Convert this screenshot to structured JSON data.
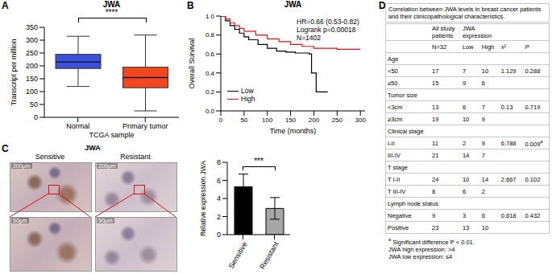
{
  "chart_data": [
    {
      "panel": "A",
      "type": "box",
      "title": "JWA",
      "x_label": "TCGA sample",
      "y_label": "Transcript per million",
      "categories": [
        "Normal",
        "Primary tumor"
      ],
      "min": [
        120,
        25
      ],
      "q1": [
        190,
        115
      ],
      "median": [
        215,
        155
      ],
      "q3": [
        245,
        195
      ],
      "max": [
        315,
        320
      ],
      "colors": [
        "#3d4fd8",
        "#f2461f"
      ],
      "ylim": [
        0,
        350
      ],
      "yticks": [
        0,
        50,
        100,
        150,
        200,
        250,
        300,
        350
      ],
      "annotation": "****"
    },
    {
      "panel": "B",
      "type": "line",
      "title": "JWA",
      "annotations": [
        "HR=0.66 (0.53-0.82)",
        "Logrank p=0.00018",
        "N=1402"
      ],
      "x_label": "Time (months)",
      "y_label": "Overall Survival",
      "line_style": "step",
      "legend": "lower left",
      "xlim": [
        0,
        310
      ],
      "xticks": [
        0,
        50,
        100,
        150,
        200,
        250,
        300
      ],
      "ylim": [
        0,
        1
      ],
      "yticks": [
        {
          "value": 0,
          "label": "0.0"
        },
        {
          "value": 0.2,
          "label": "0.2"
        },
        {
          "value": 0.4,
          "label": "0.4"
        },
        {
          "value": 0.6,
          "label": "0.6"
        },
        {
          "value": 0.8,
          "label": "0.8"
        },
        {
          "value": 1,
          "label": "1.0"
        }
      ],
      "series": [
        {
          "name": "Low",
          "color": "#000000",
          "x": [
            0,
            10,
            20,
            30,
            40,
            50,
            60,
            80,
            100,
            120,
            140,
            160,
            190,
            195,
            200,
            205,
            230
          ],
          "values": [
            1,
            0.95,
            0.9,
            0.86,
            0.82,
            0.78,
            0.75,
            0.7,
            0.66,
            0.63,
            0.62,
            0.61,
            0.6,
            0.4,
            0.4,
            0.2,
            0.2
          ]
        },
        {
          "name": "High",
          "color": "#e8141b",
          "x": [
            0,
            10,
            20,
            30,
            40,
            50,
            75,
            100,
            125,
            150,
            175,
            200,
            250,
            300
          ],
          "values": [
            1,
            0.97,
            0.93,
            0.9,
            0.87,
            0.84,
            0.8,
            0.76,
            0.73,
            0.7,
            0.68,
            0.66,
            0.65,
            0.65
          ]
        }
      ]
    },
    {
      "panel": "C",
      "type": "bar",
      "y_label": "Relative expression JWA",
      "categories": [
        "Sensitive",
        "Resistant"
      ],
      "values": [
        5.3,
        2.9
      ],
      "errors": [
        1.4,
        1.2
      ],
      "colors": [
        "#000000",
        "#a6a6a6"
      ],
      "ylim": [
        0,
        8
      ],
      "yticks": [
        0,
        2,
        4,
        6,
        8
      ],
      "annotation": "***"
    }
  ],
  "images": {
    "panel": "C",
    "title": "JWA",
    "columns": [
      "Sensitive",
      "Resistant"
    ],
    "scale_bars": [
      "200μm",
      "50μm"
    ]
  },
  "table": {
    "panel": "D",
    "title": "Correlation between JWA levels in breast cancer patients and their clinicopathological characteristics.",
    "header": {
      "row1": [
        "All study patients",
        "JWA expression"
      ],
      "row2": [
        "N=32",
        "Low",
        "High",
        "x²",
        "P"
      ]
    },
    "sections": [
      {
        "name": "Age",
        "rows": [
          {
            "label": "<50",
            "all": 17,
            "low": 7,
            "high": 10,
            "chi2": 1.129,
            "p": 0.288
          },
          {
            "label": "≥50",
            "all": 15,
            "low": 9,
            "high": 6
          }
        ]
      },
      {
        "name": "Tumor size",
        "rows": [
          {
            "label": "<3cm",
            "all": 13,
            "low": 6,
            "high": 7,
            "chi2": 0.13,
            "p": 0.719
          },
          {
            "label": "≥3cm",
            "all": 19,
            "low": 10,
            "high": 9
          }
        ]
      },
      {
        "name": "Clinical stage",
        "rows": [
          {
            "label": "I-II",
            "all": 11,
            "low": 2,
            "high": 9,
            "chi2": 6.788,
            "p": 0.009,
            "p_note": "a"
          },
          {
            "label": "III-IV",
            "all": 21,
            "low": 14,
            "high": 7
          }
        ]
      },
      {
        "name": "T stage",
        "rows": [
          {
            "label": "T I-II",
            "all": 24,
            "low": 10,
            "high": 14,
            "chi2": 2.667,
            "p": 0.102
          },
          {
            "label": "T III-IV",
            "all": 8,
            "low": 6,
            "high": 2
          }
        ]
      },
      {
        "name": "Lymph node status",
        "rows": [
          {
            "label": "Negative",
            "all": 9,
            "low": 3,
            "high": 6,
            "chi2": 0.618,
            "p": 0.432
          },
          {
            "label": "Positive",
            "all": 23,
            "low": 13,
            "high": 10
          }
        ]
      }
    ],
    "footnotes": [
      {
        "mark": "a",
        "text": "Significant difference P < 0.01."
      },
      {
        "text": "JWA high expression: >4"
      },
      {
        "text": "JWA low expression: ≤4"
      }
    ]
  }
}
